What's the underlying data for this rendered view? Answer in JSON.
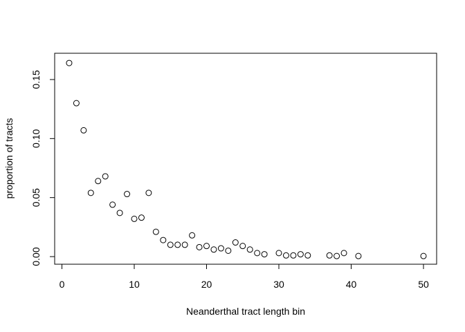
{
  "chart_data": {
    "type": "scatter",
    "title": "",
    "xlabel": "Neanderthal tract length bin",
    "ylabel": "proportion of tracts",
    "xlim": [
      0,
      51
    ],
    "ylim": [
      0,
      0.165
    ],
    "x_ticks": [
      0,
      10,
      20,
      30,
      40,
      50
    ],
    "y_ticks": [
      0.0,
      0.05,
      0.1,
      0.15
    ],
    "x_tick_labels": [
      "0",
      "10",
      "20",
      "30",
      "40",
      "50"
    ],
    "y_tick_labels": [
      "0.00",
      "0.05",
      "0.10",
      "0.15"
    ],
    "grid": false,
    "legend": "none",
    "points": [
      {
        "x": 1,
        "y": 0.164
      },
      {
        "x": 2,
        "y": 0.13
      },
      {
        "x": 3,
        "y": 0.107
      },
      {
        "x": 4,
        "y": 0.054
      },
      {
        "x": 5,
        "y": 0.064
      },
      {
        "x": 6,
        "y": 0.068
      },
      {
        "x": 7,
        "y": 0.044
      },
      {
        "x": 8,
        "y": 0.037
      },
      {
        "x": 9,
        "y": 0.053
      },
      {
        "x": 10,
        "y": 0.032
      },
      {
        "x": 11,
        "y": 0.033
      },
      {
        "x": 12,
        "y": 0.054
      },
      {
        "x": 13,
        "y": 0.021
      },
      {
        "x": 14,
        "y": 0.014
      },
      {
        "x": 15,
        "y": 0.01
      },
      {
        "x": 16,
        "y": 0.01
      },
      {
        "x": 17,
        "y": 0.01
      },
      {
        "x": 18,
        "y": 0.018
      },
      {
        "x": 19,
        "y": 0.008
      },
      {
        "x": 20,
        "y": 0.009
      },
      {
        "x": 21,
        "y": 0.006
      },
      {
        "x": 22,
        "y": 0.007
      },
      {
        "x": 23,
        "y": 0.005
      },
      {
        "x": 24,
        "y": 0.012
      },
      {
        "x": 25,
        "y": 0.009
      },
      {
        "x": 26,
        "y": 0.006
      },
      {
        "x": 27,
        "y": 0.003
      },
      {
        "x": 28,
        "y": 0.002
      },
      {
        "x": 30,
        "y": 0.003
      },
      {
        "x": 31,
        "y": 0.001
      },
      {
        "x": 32,
        "y": 0.001
      },
      {
        "x": 33,
        "y": 0.002
      },
      {
        "x": 34,
        "y": 0.001
      },
      {
        "x": 37,
        "y": 0.001
      },
      {
        "x": 38,
        "y": 0.0005
      },
      {
        "x": 39,
        "y": 0.003
      },
      {
        "x": 41,
        "y": 0.0005
      },
      {
        "x": 50,
        "y": 0.0005
      }
    ]
  }
}
